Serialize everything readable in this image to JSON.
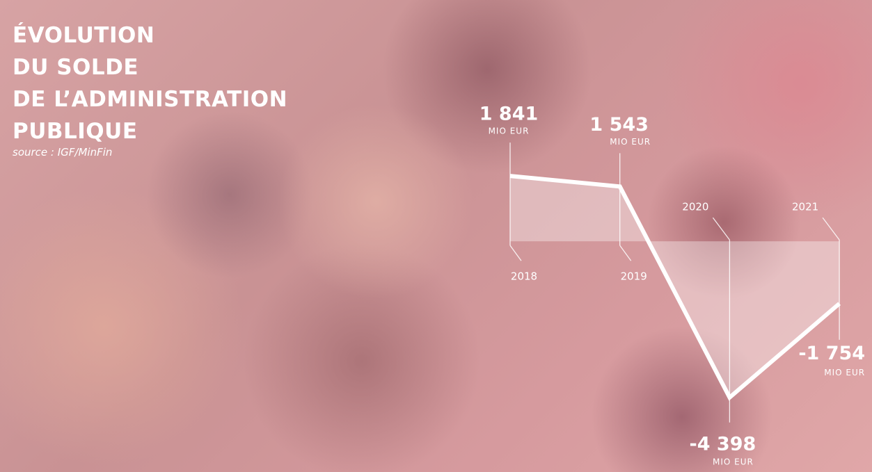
{
  "chart_data": {
    "type": "line",
    "title": "ÉVOLUTION\nDU SOLDE\nDE L’ADMINISTRATION\nPUBLIQUE",
    "subtitle": "source : IGF/MinFin",
    "categories": [
      "2018",
      "2019",
      "2020",
      "2021"
    ],
    "values": [
      1841,
      1543,
      -4398,
      -1754
    ],
    "value_labels": [
      "1 841",
      "1 543",
      "-4 398",
      "-1 754"
    ],
    "unit": "MIO EUR",
    "ylim": [
      -4500,
      2000
    ],
    "color": "#ffffff"
  }
}
